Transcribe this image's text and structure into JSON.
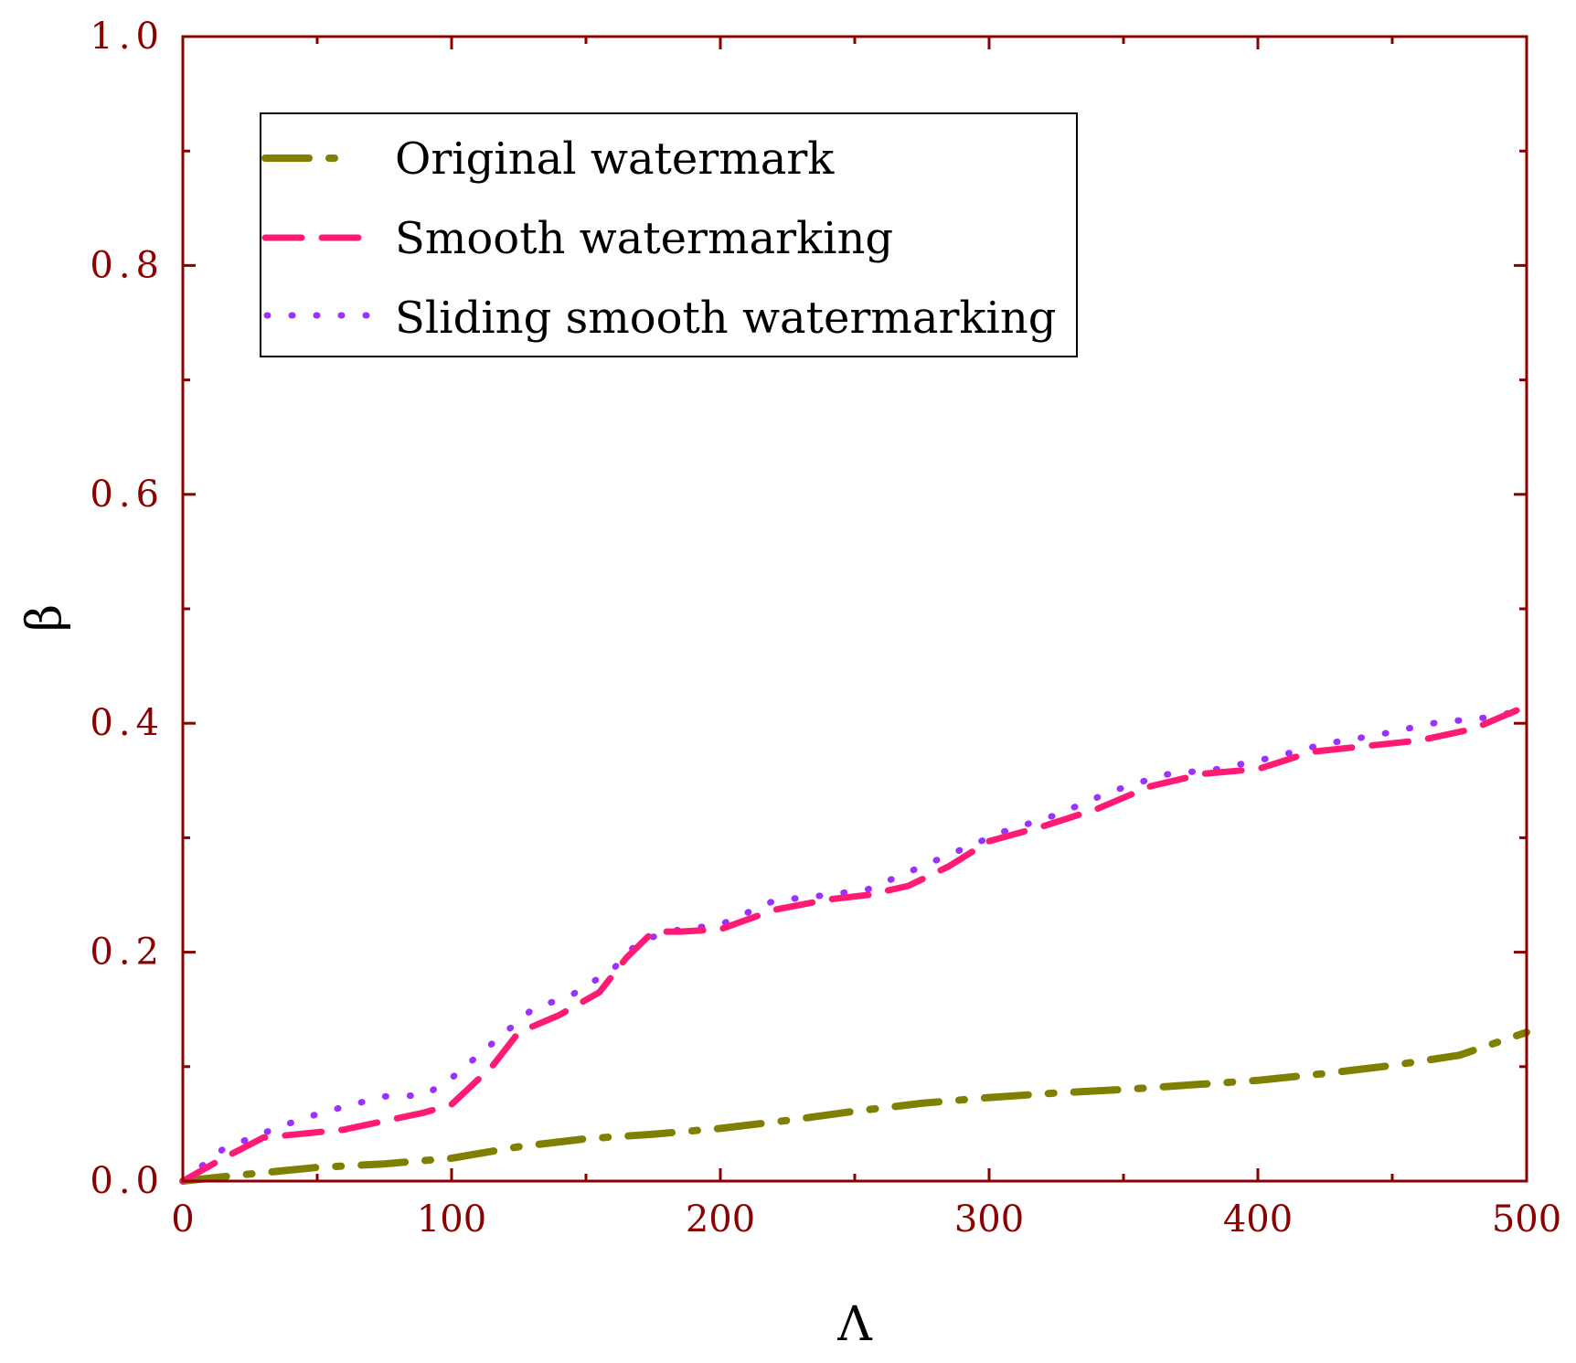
{
  "colors": {
    "axis": "#8b0000",
    "tick_label": "#8b0000",
    "original": "#808000",
    "smooth": "#ff1a75",
    "sliding": "#9b30ff",
    "legend_border": "#000000"
  },
  "chart_data": {
    "type": "line",
    "title": "",
    "xlabel": "Λ",
    "ylabel": "β",
    "xlim": [
      0,
      500
    ],
    "ylim": [
      0,
      1.0
    ],
    "x_ticks": [
      "0",
      "100",
      "200",
      "300",
      "400",
      "500"
    ],
    "y_ticks": [
      "0.0",
      "0.2",
      "0.4",
      "0.6",
      "0.8",
      "1.0"
    ],
    "grid": false,
    "legend_position": "top-left",
    "legend": [
      "Original watermark",
      "Smooth watermarking",
      "Sliding smooth watermarking"
    ],
    "series": [
      {
        "name": "Original watermark",
        "style": "dash-dot",
        "x": [
          0,
          20,
          50,
          75,
          100,
          125,
          150,
          175,
          200,
          225,
          250,
          275,
          300,
          325,
          350,
          375,
          400,
          425,
          450,
          475,
          500
        ],
        "y": [
          0.0,
          0.005,
          0.012,
          0.015,
          0.02,
          0.03,
          0.037,
          0.041,
          0.046,
          0.053,
          0.061,
          0.068,
          0.073,
          0.077,
          0.08,
          0.084,
          0.088,
          0.094,
          0.101,
          0.11,
          0.13
        ]
      },
      {
        "name": "Smooth watermarking",
        "style": "dashed",
        "x": [
          0,
          15,
          30,
          60,
          90,
          100,
          115,
          125,
          140,
          155,
          165,
          175,
          185,
          200,
          220,
          240,
          255,
          270,
          285,
          300,
          320,
          340,
          360,
          380,
          400,
          420,
          440,
          460,
          480,
          500
        ],
        "y": [
          0.0,
          0.02,
          0.038,
          0.045,
          0.06,
          0.067,
          0.1,
          0.13,
          0.145,
          0.165,
          0.195,
          0.218,
          0.218,
          0.22,
          0.237,
          0.246,
          0.25,
          0.258,
          0.275,
          0.297,
          0.31,
          0.325,
          0.345,
          0.356,
          0.36,
          0.375,
          0.38,
          0.385,
          0.395,
          0.415
        ]
      },
      {
        "name": "Sliding smooth watermarking",
        "style": "dotted",
        "x": [
          0,
          15,
          30,
          45,
          60,
          75,
          90,
          100,
          115,
          130,
          145,
          160,
          170,
          185,
          200,
          220,
          240,
          255,
          270,
          285,
          305,
          325,
          345,
          365,
          385,
          405,
          425,
          445,
          465,
          485,
          500
        ],
        "y": [
          0.0,
          0.028,
          0.042,
          0.055,
          0.065,
          0.074,
          0.075,
          0.09,
          0.12,
          0.15,
          0.163,
          0.185,
          0.21,
          0.22,
          0.224,
          0.245,
          0.25,
          0.255,
          0.27,
          0.285,
          0.305,
          0.32,
          0.34,
          0.355,
          0.36,
          0.37,
          0.382,
          0.39,
          0.4,
          0.405,
          0.412
        ]
      }
    ]
  }
}
